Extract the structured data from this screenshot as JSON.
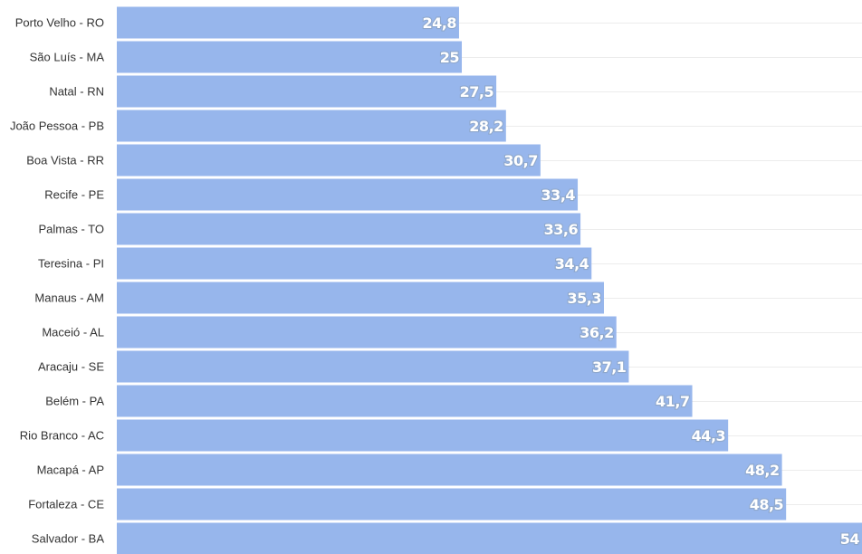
{
  "chart_data": {
    "type": "bar",
    "orientation": "horizontal",
    "title": "",
    "xlabel": "",
    "ylabel": "",
    "categories": [
      "Porto Velho - RO",
      "São Luís - MA",
      "Natal - RN",
      "João Pessoa - PB",
      "Boa Vista - RR",
      "Recife - PE",
      "Palmas - TO",
      "Teresina - PI",
      "Manaus - AM",
      "Maceió - AL",
      "Aracaju - SE",
      "Belém - PA",
      "Rio Branco - AC",
      "Macapá - AP",
      "Fortaleza - CE",
      "Salvador - BA"
    ],
    "values": [
      24.8,
      25,
      27.5,
      28.2,
      30.7,
      33.4,
      33.6,
      34.4,
      35.3,
      36.2,
      37.1,
      41.7,
      44.3,
      48.2,
      48.5,
      54
    ],
    "value_labels": [
      "24,8",
      "25",
      "27,5",
      "28,2",
      "30,7",
      "33,4",
      "33,6",
      "34,4",
      "35,3",
      "36,2",
      "37,1",
      "41,7",
      "44,3",
      "48,2",
      "48,5",
      "54"
    ],
    "xlim": [
      0,
      54
    ],
    "grid": true,
    "colors": {
      "bar": "#97b6ec",
      "label_outline": "#8fa8cc",
      "label_text": "#ffffff"
    }
  }
}
